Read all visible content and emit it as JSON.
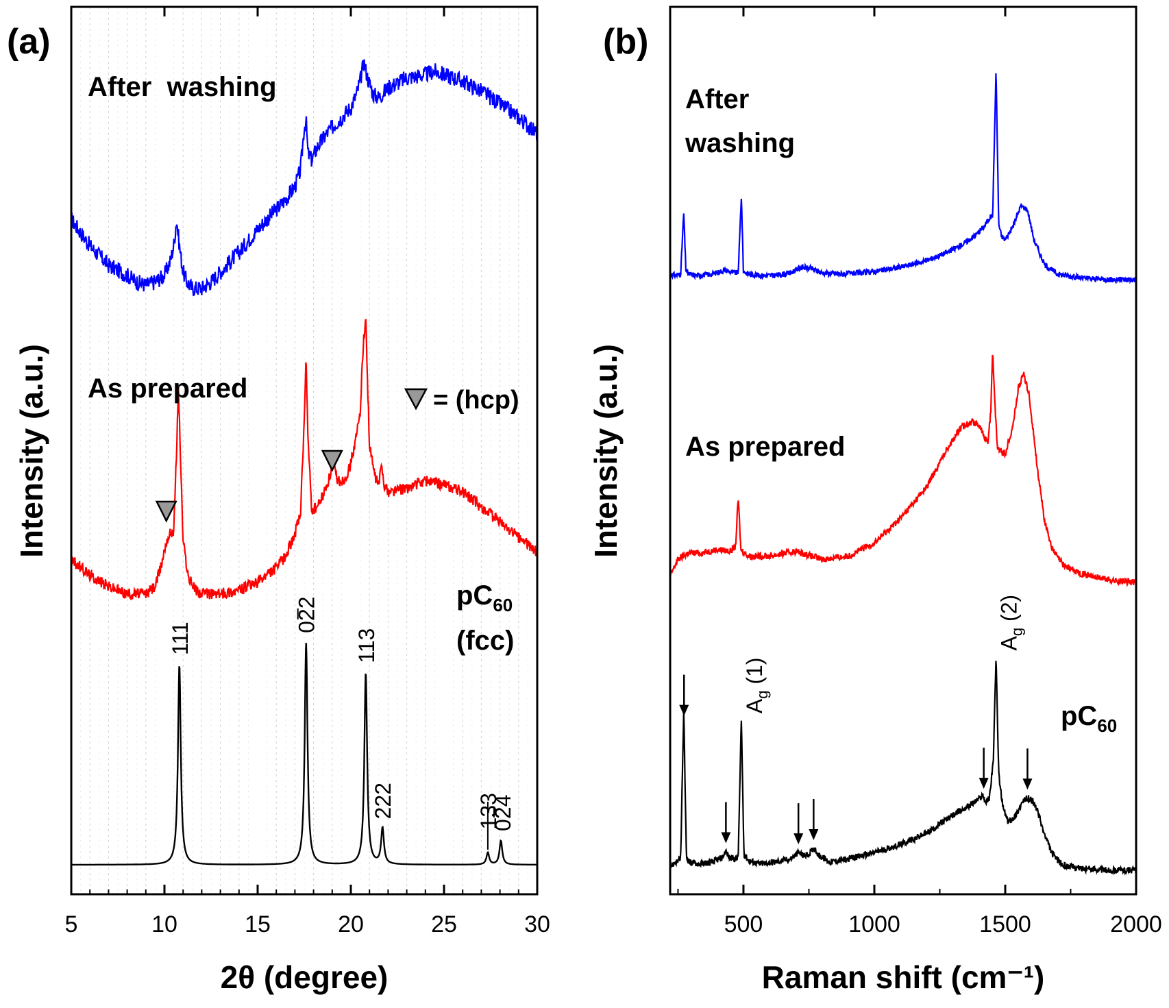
{
  "chart_data": [
    {
      "panel_label": "(a)",
      "type": "line",
      "xlabel": "2θ (degree)",
      "ylabel": "Intensity (a.u.)",
      "xlim": [
        5,
        30
      ],
      "xticks": [
        5,
        10,
        15,
        20,
        25,
        30
      ],
      "grid": "vertical dashed minor",
      "series": [
        {
          "name": "After  washing",
          "color": "#0000ff",
          "x": [
            5,
            6,
            7,
            8,
            8.5,
            9,
            9.5,
            10,
            10.3,
            10.5,
            10.65,
            10.8,
            11,
            11.2,
            11.5,
            12,
            12.5,
            13,
            14,
            15,
            16,
            16.5,
            17,
            17.3,
            17.5,
            17.6,
            17.7,
            17.9,
            18.2,
            18.7,
            19,
            19.5,
            20,
            20.3,
            20.5,
            20.7,
            20.9,
            21.2,
            21.5,
            22,
            23,
            24,
            24.5,
            25,
            26,
            27,
            28,
            29,
            30
          ],
          "y": [
            0.5,
            0.42,
            0.36,
            0.33,
            0.31,
            0.3,
            0.31,
            0.33,
            0.37,
            0.42,
            0.5,
            0.42,
            0.34,
            0.31,
            0.29,
            0.29,
            0.31,
            0.34,
            0.4,
            0.47,
            0.53,
            0.56,
            0.6,
            0.65,
            0.78,
            0.8,
            0.7,
            0.68,
            0.72,
            0.76,
            0.78,
            0.81,
            0.84,
            0.88,
            0.92,
            0.98,
            0.93,
            0.88,
            0.87,
            0.9,
            0.93,
            0.94,
            0.95,
            0.94,
            0.92,
            0.89,
            0.85,
            0.81,
            0.76
          ]
        },
        {
          "name": "As prepared",
          "color": "#ff0000",
          "x": [
            5,
            6,
            7,
            8,
            9,
            9.5,
            9.8,
            10.1,
            10.3,
            10.5,
            10.65,
            10.75,
            10.85,
            11,
            11.3,
            11.7,
            12,
            13,
            14,
            15,
            16,
            16.5,
            17,
            17.3,
            17.5,
            17.6,
            17.7,
            17.9,
            18.2,
            18.5,
            18.8,
            19.05,
            19.3,
            19.6,
            19.9,
            20.2,
            20.5,
            20.65,
            20.8,
            21,
            21.3,
            21.5,
            21.65,
            21.8,
            22,
            23,
            24,
            25,
            26,
            27,
            28,
            29,
            30
          ],
          "y": [
            0.26,
            0.22,
            0.19,
            0.17,
            0.17,
            0.19,
            0.24,
            0.31,
            0.33,
            0.34,
            0.55,
            0.72,
            0.55,
            0.31,
            0.21,
            0.18,
            0.17,
            0.17,
            0.18,
            0.2,
            0.24,
            0.27,
            0.33,
            0.38,
            0.63,
            0.8,
            0.58,
            0.39,
            0.4,
            0.43,
            0.47,
            0.51,
            0.47,
            0.47,
            0.5,
            0.56,
            0.65,
            0.82,
            0.9,
            0.56,
            0.48,
            0.46,
            0.51,
            0.46,
            0.44,
            0.45,
            0.47,
            0.46,
            0.44,
            0.4,
            0.36,
            0.32,
            0.28
          ]
        },
        {
          "name": "pC60 (fcc)",
          "color": "#000000",
          "type": "stick-peaks",
          "peaks": [
            {
              "x": 10.8,
              "y": 1.0,
              "label": "111"
            },
            {
              "x": 17.6,
              "y": 1.11,
              "label": "022"
            },
            {
              "x": 20.8,
              "y": 0.96,
              "label": "113"
            },
            {
              "x": 21.7,
              "y": 0.18,
              "label": "222"
            },
            {
              "x": 27.35,
              "y": 0.06,
              "label": "133"
            },
            {
              "x": 28.05,
              "y": 0.12,
              "label": "024"
            }
          ]
        }
      ],
      "annotations": {
        "hcp_markers_x": [
          10.1,
          19.0
        ],
        "legend_text": "= (hcp)",
        "trace_labels": [
          "After  washing",
          "As prepared",
          "pC60",
          "(fcc)"
        ]
      }
    },
    {
      "panel_label": "(b)",
      "type": "line",
      "xlabel": "Raman shift  (cm⁻¹)",
      "ylabel": "Intensity (a.u.)",
      "xlim": [
        220,
        2000
      ],
      "xticks": [
        500,
        1000,
        1500,
        2000
      ],
      "series": [
        {
          "name": "After washing",
          "color": "#0000ff",
          "x": [
            220,
            240,
            260,
            272,
            280,
            290,
            320,
            380,
            430,
            460,
            480,
            492,
            500,
            520,
            560,
            620,
            680,
            720,
            760,
            800,
            880,
            960,
            1040,
            1120,
            1200,
            1280,
            1340,
            1390,
            1420,
            1440,
            1452,
            1465,
            1475,
            1485,
            1500,
            1530,
            1560,
            1585,
            1610,
            1650,
            1700,
            1800,
            1900,
            2000
          ],
          "y": [
            0.05,
            0.04,
            0.05,
            0.5,
            0.08,
            0.05,
            0.04,
            0.05,
            0.08,
            0.06,
            0.06,
            0.62,
            0.07,
            0.05,
            0.04,
            0.04,
            0.06,
            0.1,
            0.09,
            0.06,
            0.05,
            0.06,
            0.08,
            0.11,
            0.15,
            0.21,
            0.27,
            0.34,
            0.4,
            0.46,
            0.48,
            1.55,
            0.42,
            0.33,
            0.3,
            0.4,
            0.55,
            0.52,
            0.3,
            0.12,
            0.05,
            0.02,
            0.01,
            0.01
          ]
        },
        {
          "name": "As prepared",
          "color": "#ff0000",
          "x": [
            220,
            250,
            290,
            340,
            400,
            450,
            470,
            480,
            490,
            520,
            600,
            700,
            800,
            900,
            1000,
            1100,
            1200,
            1280,
            1330,
            1370,
            1400,
            1420,
            1435,
            1445,
            1452,
            1460,
            1470,
            1500,
            1530,
            1550,
            1570,
            1590,
            1610,
            1630,
            1650,
            1680,
            1720,
            1780,
            1850,
            1920,
            2000
          ],
          "y": [
            0.04,
            0.14,
            0.18,
            0.18,
            0.2,
            0.19,
            0.22,
            0.52,
            0.2,
            0.16,
            0.16,
            0.19,
            0.14,
            0.16,
            0.24,
            0.39,
            0.58,
            0.82,
            0.94,
            0.98,
            0.96,
            0.88,
            0.86,
            1.05,
            1.42,
            1.1,
            0.82,
            0.78,
            0.96,
            1.18,
            1.27,
            1.15,
            0.88,
            0.6,
            0.38,
            0.2,
            0.11,
            0.06,
            0.03,
            0.01,
            0.0
          ]
        },
        {
          "name": "pC60",
          "color": "#000000",
          "x": [
            220,
            240,
            260,
            272,
            282,
            295,
            330,
            380,
            420,
            432,
            445,
            470,
            480,
            492,
            502,
            520,
            560,
            620,
            680,
            710,
            730,
            750,
            770,
            790,
            830,
            900,
            1000,
            1100,
            1200,
            1280,
            1340,
            1380,
            1405,
            1415,
            1425,
            1440,
            1455,
            1465,
            1475,
            1490,
            1510,
            1540,
            1565,
            1585,
            1605,
            1625,
            1650,
            1680,
            1720,
            1800,
            1900,
            2000
          ],
          "y": [
            0.02,
            0.05,
            0.07,
            1.0,
            0.08,
            0.05,
            0.04,
            0.05,
            0.08,
            0.12,
            0.08,
            0.07,
            0.08,
            0.94,
            0.1,
            0.06,
            0.04,
            0.05,
            0.07,
            0.11,
            0.09,
            0.1,
            0.14,
            0.09,
            0.05,
            0.07,
            0.11,
            0.16,
            0.23,
            0.32,
            0.38,
            0.42,
            0.45,
            0.47,
            0.42,
            0.45,
            0.7,
            1.33,
            0.6,
            0.4,
            0.3,
            0.34,
            0.42,
            0.45,
            0.43,
            0.36,
            0.22,
            0.1,
            0.03,
            0.01,
            0.0,
            0.0
          ]
        }
      ],
      "annotations": {
        "arrows_x": [
          273,
          433,
          710,
          768,
          1418,
          1585
        ],
        "mode_labels": [
          {
            "x": 492,
            "text": "Ag(1)"
          },
          {
            "x": 1465,
            "text": "Ag(2)"
          }
        ],
        "trace_labels": [
          "After",
          "washing",
          "As prepared",
          "pC60"
        ]
      }
    }
  ]
}
